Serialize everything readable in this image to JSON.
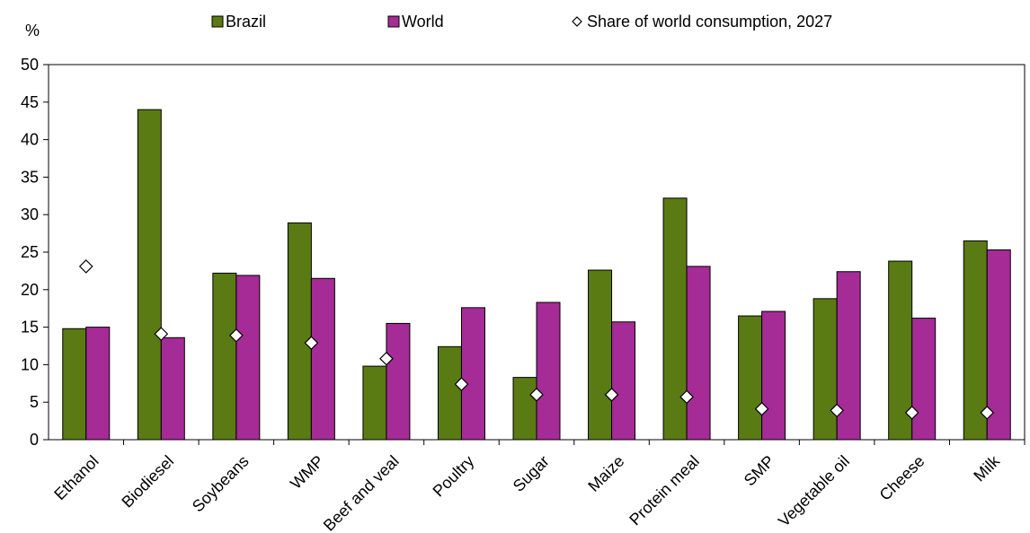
{
  "chart_data": {
    "type": "bar",
    "ylabel": "%",
    "ylim": [
      0,
      50
    ],
    "yticks": [
      0,
      5,
      10,
      15,
      20,
      25,
      30,
      35,
      40,
      45,
      50
    ],
    "categories": [
      "Ethanol",
      "Biodiesel",
      "Soybeans",
      "WMP",
      "Beef and veal",
      "Poultry",
      "Sugar",
      "Maize",
      "Protein meal",
      "SMP",
      "Vegetable oil",
      "Cheese",
      "Milk"
    ],
    "series": [
      {
        "name": "Brazil",
        "kind": "bar",
        "color": "#5a7a13",
        "values": [
          14.8,
          44.0,
          22.2,
          28.9,
          9.8,
          12.4,
          8.3,
          22.6,
          32.2,
          16.5,
          18.8,
          23.8,
          26.5
        ]
      },
      {
        "name": "World",
        "kind": "bar",
        "color": "#a52b96",
        "values": [
          15.0,
          13.6,
          21.9,
          21.5,
          15.5,
          17.6,
          18.3,
          15.7,
          23.1,
          17.1,
          22.4,
          16.2,
          25.3
        ]
      },
      {
        "name": "Share of world consumption, 2027",
        "kind": "marker",
        "color": "#ffffff",
        "values": [
          23.1,
          14.1,
          13.9,
          12.9,
          10.8,
          7.4,
          6.0,
          6.0,
          5.7,
          4.1,
          3.9,
          3.6,
          3.6
        ]
      }
    ],
    "legend_position": "top",
    "grid": false
  }
}
